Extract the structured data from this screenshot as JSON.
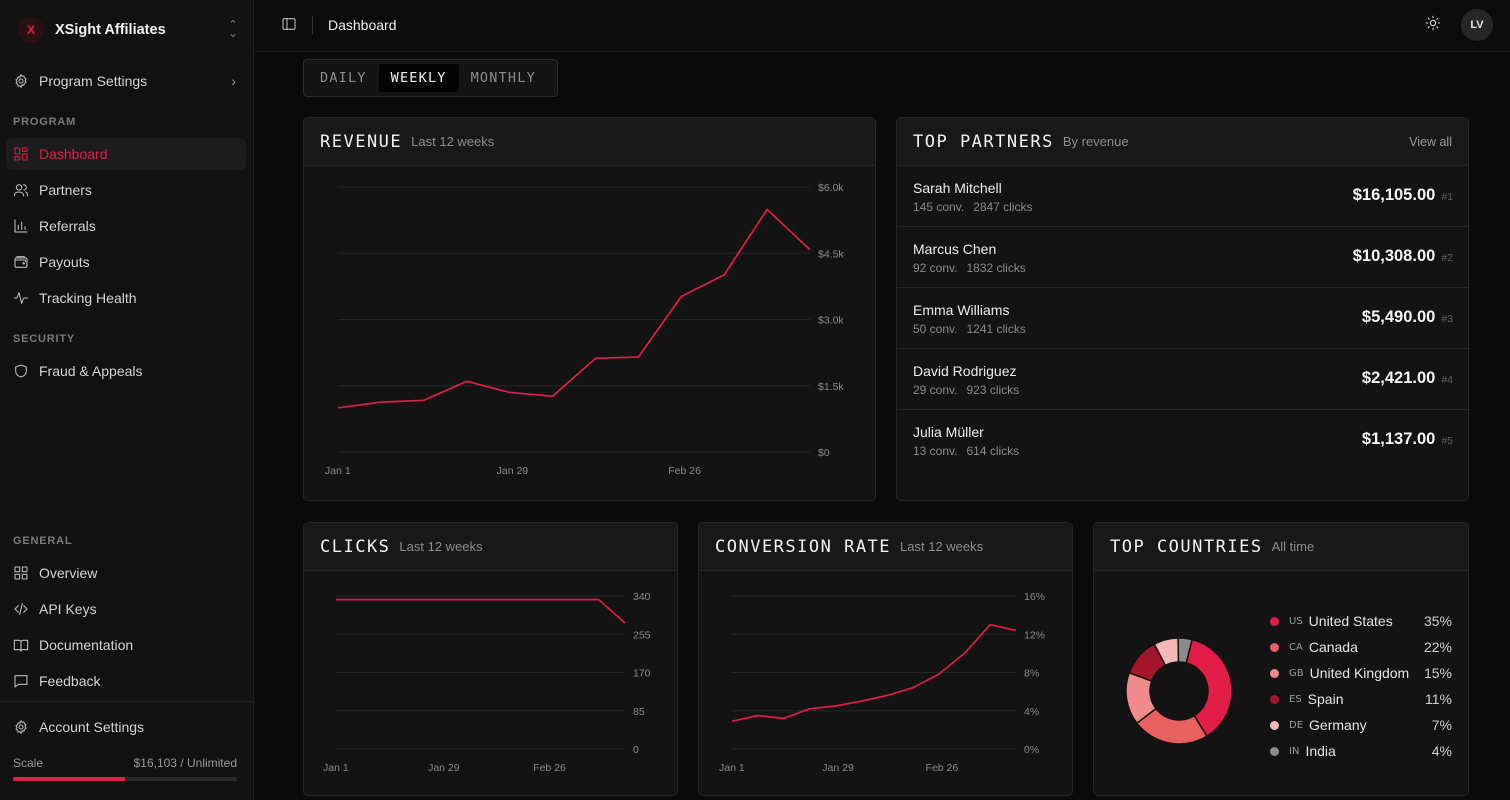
{
  "sidebar": {
    "brand": {
      "logo": "X",
      "name": "XSight Affiliates"
    },
    "program_settings": "Program Settings",
    "sections": {
      "program": "PROGRAM",
      "security": "SECURITY",
      "general": "GENERAL"
    },
    "program_items": [
      {
        "label": "Dashboard",
        "icon": "dashboard-icon",
        "active": true
      },
      {
        "label": "Partners",
        "icon": "users-icon"
      },
      {
        "label": "Referrals",
        "icon": "bar-chart-icon"
      },
      {
        "label": "Payouts",
        "icon": "wallet-icon"
      },
      {
        "label": "Tracking Health",
        "icon": "activity-icon"
      }
    ],
    "security_items": [
      {
        "label": "Fraud & Appeals",
        "icon": "shield-icon"
      }
    ],
    "general_items": [
      {
        "label": "Overview",
        "icon": "grid-icon"
      },
      {
        "label": "API Keys",
        "icon": "code-icon"
      },
      {
        "label": "Documentation",
        "icon": "book-icon"
      },
      {
        "label": "Feedback",
        "icon": "message-icon"
      }
    ],
    "account_settings": "Account Settings",
    "scale": {
      "label": "Scale",
      "value": "$16,103 / Unlimited",
      "progress": 0.5
    }
  },
  "header": {
    "breadcrumb": "Dashboard",
    "avatar": "LV"
  },
  "period_tabs": [
    {
      "label": "DAILY"
    },
    {
      "label": "WEEKLY",
      "active": true
    },
    {
      "label": "MONTHLY"
    }
  ],
  "colors": {
    "accent": "#e11d48"
  },
  "revenue": {
    "title": "REVENUE",
    "subtitle": "Last 12 weeks"
  },
  "clicks": {
    "title": "CLICKS",
    "subtitle": "Last 12 weeks"
  },
  "conversion": {
    "title": "CONVERSION RATE",
    "subtitle": "Last 12 weeks"
  },
  "partners": {
    "title": "TOP PARTNERS",
    "subtitle": "By revenue",
    "view_all": "View all",
    "rows": [
      {
        "name": "Sarah Mitchell",
        "conv": "145 conv.",
        "clicks": "2847 clicks",
        "amount": "$16,105.00",
        "rank": "#1"
      },
      {
        "name": "Marcus Chen",
        "conv": "92 conv.",
        "clicks": "1832 clicks",
        "amount": "$10,308.00",
        "rank": "#2"
      },
      {
        "name": "Emma Williams",
        "conv": "50 conv.",
        "clicks": "1241 clicks",
        "amount": "$5,490.00",
        "rank": "#3"
      },
      {
        "name": "David Rodriguez",
        "conv": "29 conv.",
        "clicks": "923 clicks",
        "amount": "$2,421.00",
        "rank": "#4"
      },
      {
        "name": "Julia Müller",
        "conv": "13 conv.",
        "clicks": "614 clicks",
        "amount": "$1,137.00",
        "rank": "#5"
      }
    ]
  },
  "countries": {
    "title": "TOP COUNTRIES",
    "subtitle": "All time",
    "items": [
      {
        "name": "United States",
        "flag": "US",
        "pct": "35%",
        "color": "#e11d48"
      },
      {
        "name": "Canada",
        "flag": "CA",
        "pct": "22%",
        "color": "#e8605f"
      },
      {
        "name": "United Kingdom",
        "flag": "GB",
        "pct": "15%",
        "color": "#f28b8b"
      },
      {
        "name": "Spain",
        "flag": "ES",
        "pct": "11%",
        "color": "#a3162b"
      },
      {
        "name": "Germany",
        "flag": "DE",
        "pct": "7%",
        "color": "#f4b8b8"
      },
      {
        "name": "India",
        "flag": "IN",
        "pct": "4%",
        "color": "#8c8c8c"
      }
    ]
  },
  "chart_data": [
    {
      "id": "revenue",
      "type": "line",
      "x": [
        "Jan 1",
        "Jan 8",
        "Jan 15",
        "Jan 22",
        "Jan 29",
        "Feb 5",
        "Feb 12",
        "Feb 19",
        "Feb 26",
        "Mar 5",
        "Mar 12",
        "Mar 19"
      ],
      "x_tick_labels": [
        "Jan 1",
        "Jan 29",
        "Feb 26"
      ],
      "y_tick_labels": [
        "$0",
        "$1.5k",
        "$3.0k",
        "$4.5k",
        "$6.0k"
      ],
      "ylim": [
        0,
        6000
      ],
      "series": [
        {
          "values": [
            1000,
            1130,
            1170,
            1600,
            1350,
            1260,
            2120,
            2150,
            3520,
            4010,
            5490,
            4580
          ]
        }
      ]
    },
    {
      "id": "clicks",
      "type": "line",
      "x": [
        "Jan 1",
        "Jan 8",
        "Jan 15",
        "Jan 22",
        "Jan 29",
        "Feb 5",
        "Feb 12",
        "Feb 19",
        "Feb 26",
        "Mar 5",
        "Mar 12",
        "Mar 19"
      ],
      "x_tick_labels": [
        "Jan 1",
        "Jan 29",
        "Feb 26"
      ],
      "y_tick_labels": [
        "0",
        "85",
        "170",
        "255",
        "340"
      ],
      "ylim": [
        0,
        340
      ],
      "series": [
        {
          "values": [
            332,
            332,
            332,
            332,
            332,
            332,
            332,
            332,
            332,
            332,
            332,
            280
          ]
        }
      ]
    },
    {
      "id": "conversion",
      "type": "line",
      "x": [
        "Jan 1",
        "Jan 8",
        "Jan 15",
        "Jan 22",
        "Jan 29",
        "Feb 5",
        "Feb 12",
        "Feb 19",
        "Feb 26",
        "Mar 5",
        "Mar 12",
        "Mar 19"
      ],
      "x_tick_labels": [
        "Jan 1",
        "Jan 29",
        "Feb 26"
      ],
      "y_tick_labels": [
        "0%",
        "4%",
        "8%",
        "12%",
        "16%"
      ],
      "ylim": [
        0,
        16
      ],
      "series": [
        {
          "values": [
            2.9,
            3.5,
            3.2,
            4.2,
            4.5,
            5.0,
            5.6,
            6.4,
            7.8,
            10.0,
            13.0,
            12.4
          ]
        }
      ]
    },
    {
      "id": "countries",
      "type": "pie",
      "categories": [
        "United States",
        "Canada",
        "United Kingdom",
        "Spain",
        "Germany",
        "India"
      ],
      "values": [
        35,
        22,
        15,
        11,
        7,
        4
      ]
    }
  ]
}
